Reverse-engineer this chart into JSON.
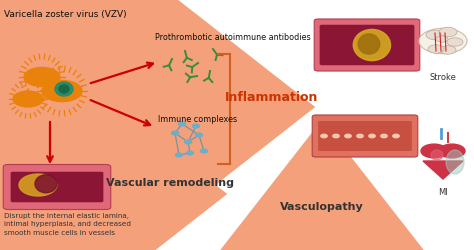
{
  "bg_color": "#ffffff",
  "vzv_label": "Varicella zoster virus (VZV)",
  "antibody_label": "Prothrombotic autoimmune antibodies",
  "immune_label": "Immune complexes",
  "inflammation_label": "Inflammation",
  "vascular_label": "Vascular remodeling",
  "vasculopathy_label": "Vasculopathy",
  "stroke_label": "Stroke",
  "mi_label": "MI",
  "bottom_label": "Disrupt the internal elastic lamina,\nintimal hyperplasia, and decreased\nsmooth muscle cells in vessels",
  "red_arrow_color": "#cc0000",
  "salmon_arrow_color": "#f4a07a",
  "vzv_spiky_color": "#e8820a",
  "vzv_core_color": "#2a8c6a",
  "antibody_color": "#3a8c3a",
  "immune_complex_node_color": "#6ab0c8",
  "immune_complex_edge_color": "#8090a0"
}
